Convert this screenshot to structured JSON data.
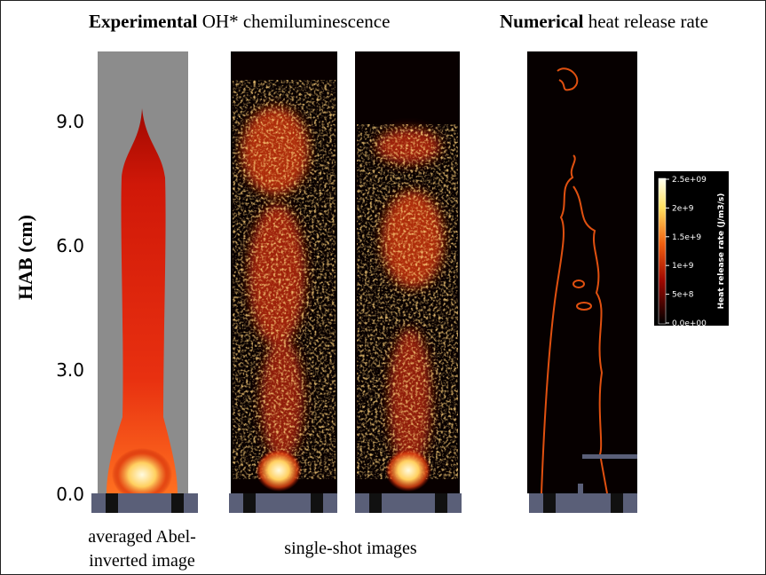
{
  "header": {
    "experimental_bold": "Experimental",
    "experimental_rest": " OH* chemiluminescence",
    "numerical_bold": "Numerical",
    "numerical_rest": " heat release rate"
  },
  "y_axis": {
    "label": "HAB (cm)",
    "ticks": [
      "9.0",
      "6.0",
      "3.0",
      "0.0"
    ]
  },
  "captions": {
    "averaged": [
      "averaged Abel-",
      "inverted image"
    ],
    "single_shot": "single-shot images"
  },
  "colorbar": {
    "title": "Heat release rate (J/m3/s)",
    "labels": [
      "2.5e+09",
      "2e+9",
      "1.5e+9",
      "1e+9",
      "5e+8",
      "0.0e+00"
    ]
  }
}
